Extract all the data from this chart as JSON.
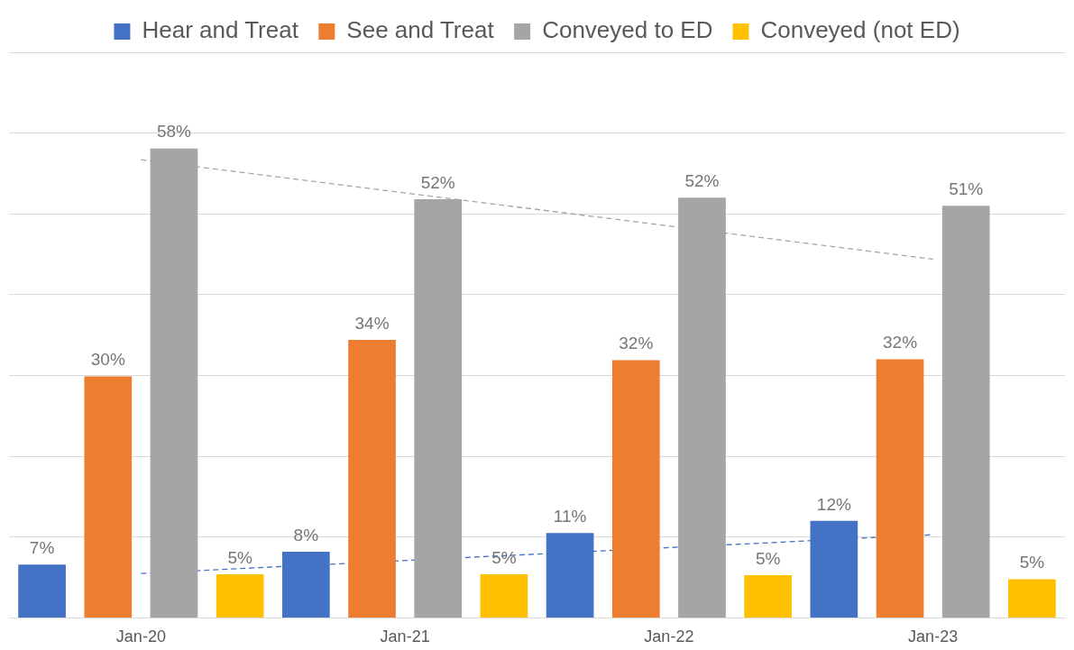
{
  "chart_data": {
    "type": "bar",
    "categories": [
      "Jan-20",
      "Jan-21",
      "Jan-22",
      "Jan-23"
    ],
    "series": [
      {
        "name": "Hear and Treat",
        "color": "#4472c4",
        "values": [
          6.6,
          8.2,
          10.5,
          12.0
        ],
        "value_labels": [
          "7%",
          "8%",
          "11%",
          "12%"
        ]
      },
      {
        "name": "See and Treat",
        "color": "#ed7d31",
        "values": [
          29.9,
          34.4,
          31.9,
          32.0
        ],
        "value_labels": [
          "30%",
          "34%",
          "32%",
          "32%"
        ]
      },
      {
        "name": "Conveyed to ED",
        "color": "#a5a5a5",
        "values": [
          58.1,
          51.8,
          52.0,
          51.0
        ],
        "value_labels": [
          "58%",
          "52%",
          "52%",
          "51%"
        ]
      },
      {
        "name": "Conveyed (not ED)",
        "color": "#ffc000",
        "values": [
          5.4,
          5.4,
          5.3,
          4.8
        ],
        "value_labels": [
          "5%",
          "5%",
          "5%",
          "5%"
        ]
      },
      {
        "type": "line",
        "color": "#a5a5a5",
        "x": [
          "Jan-20",
          "Jan-23"
        ],
        "values": [
          56.7,
          44.4
        ],
        "line_style": "dashed",
        "marker": "none"
      },
      {
        "type": "line",
        "color": "#4472c4",
        "x": [
          "Jan-20",
          "Jan-23"
        ],
        "values": [
          5.5,
          10.3
        ],
        "line_style": "dashed",
        "marker": "none"
      }
    ],
    "ylim": [
      0,
      70
    ],
    "yticks": [
      {
        "value": 0,
        "label": null
      },
      {
        "value": 10,
        "label": null
      },
      {
        "value": 20,
        "label": null
      },
      {
        "value": 30,
        "label": null
      },
      {
        "value": 40,
        "label": null
      },
      {
        "value": 50,
        "label": null
      },
      {
        "value": 60,
        "label": null
      },
      {
        "value": 70,
        "label": null
      }
    ],
    "grid": "y",
    "legend": "top",
    "tick_labels": "x"
  }
}
